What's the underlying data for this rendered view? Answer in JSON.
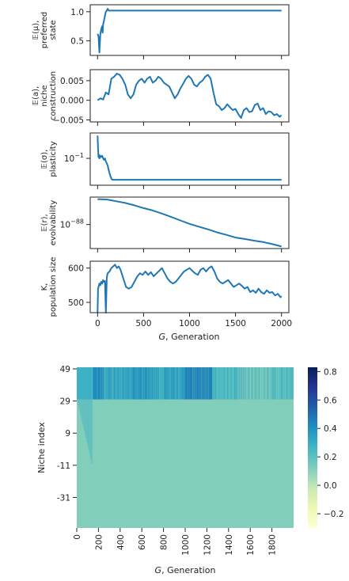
{
  "chart_data": [
    {
      "type": "line",
      "ylabel_lines": [
        "𝔼(μ),",
        "preferred",
        "state"
      ],
      "xlim": [
        -80,
        2080
      ],
      "ylim": [
        0.25,
        1.12
      ],
      "yticks": [
        {
          "v": 0.5,
          "label": "0.5"
        },
        {
          "v": 1.0,
          "label": "1.0"
        }
      ],
      "series": [
        {
          "x": [
            0,
            10,
            20,
            30,
            40,
            50,
            55,
            60,
            70,
            80,
            90,
            100,
            110,
            120,
            140,
            160,
            200,
            400,
            800,
            1200,
            1600,
            2000
          ],
          "values": [
            0.62,
            0.58,
            0.3,
            0.62,
            0.7,
            0.75,
            0.64,
            0.78,
            0.85,
            0.93,
            1.0,
            1.02,
            1.05,
            1.02,
            1.02,
            1.02,
            1.02,
            1.02,
            1.02,
            1.02,
            1.02,
            1.02
          ]
        }
      ]
    },
    {
      "type": "line",
      "ylabel_lines": [
        "𝔼(a),",
        "niche",
        "construction"
      ],
      "xlim": [
        -80,
        2080
      ],
      "ylim": [
        -0.0055,
        0.0078
      ],
      "yticks": [
        {
          "v": 0.005,
          "label": "0.005"
        },
        {
          "v": 0.0,
          "label": "0.000"
        },
        {
          "v": -0.005,
          "label": "−0.005"
        }
      ],
      "series": [
        {
          "x": [
            0,
            30,
            60,
            90,
            120,
            150,
            180,
            210,
            240,
            270,
            300,
            330,
            360,
            390,
            420,
            450,
            480,
            510,
            540,
            570,
            600,
            630,
            660,
            690,
            720,
            750,
            780,
            810,
            840,
            870,
            900,
            930,
            960,
            990,
            1020,
            1050,
            1080,
            1110,
            1140,
            1170,
            1200,
            1230,
            1260,
            1290,
            1320,
            1350,
            1380,
            1410,
            1440,
            1470,
            1500,
            1530,
            1560,
            1590,
            1620,
            1650,
            1680,
            1710,
            1740,
            1770,
            1800,
            1830,
            1860,
            1890,
            1920,
            1950,
            1980,
            2000
          ],
          "values": [
            0.0,
            0.0005,
            0.0002,
            0.002,
            0.0015,
            0.0055,
            0.006,
            0.0068,
            0.0065,
            0.0055,
            0.004,
            0.0015,
            0.0005,
            0.0015,
            0.004,
            0.005,
            0.0055,
            0.0045,
            0.0055,
            0.006,
            0.0045,
            0.005,
            0.006,
            0.0055,
            0.0045,
            0.004,
            0.0035,
            0.002,
            0.0005,
            0.0015,
            0.003,
            0.0042,
            0.0055,
            0.0062,
            0.0055,
            0.004,
            0.0035,
            0.0045,
            0.005,
            0.006,
            0.0065,
            0.0055,
            0.002,
            -0.001,
            -0.0015,
            -0.0025,
            -0.002,
            -0.001,
            -0.0018,
            -0.0025,
            -0.0022,
            -0.0035,
            -0.0045,
            -0.0025,
            -0.002,
            -0.003,
            -0.0028,
            -0.0012,
            -0.0008,
            -0.0025,
            -0.002,
            -0.0035,
            -0.0028,
            -0.003,
            -0.0038,
            -0.0035,
            -0.0042,
            -0.0038
          ]
        }
      ]
    },
    {
      "type": "line",
      "ylabel_lines": [
        "𝔼(σ),",
        "plasticity"
      ],
      "scale": "log",
      "xlim": [
        -80,
        2080
      ],
      "ylim": [
        0.015,
        0.6
      ],
      "yticks": [
        {
          "v": 0.1,
          "label": "10",
          "sup": "−1"
        }
      ],
      "series": [
        {
          "x": [
            0,
            5,
            10,
            15,
            20,
            30,
            40,
            50,
            60,
            70,
            80,
            90,
            100,
            110,
            120,
            130,
            140,
            150,
            160,
            180,
            200,
            400,
            800,
            1200,
            1600,
            2000
          ],
          "values": [
            0.5,
            0.2,
            0.11,
            0.13,
            0.1,
            0.12,
            0.11,
            0.12,
            0.1,
            0.09,
            0.1,
            0.08,
            0.07,
            0.06,
            0.045,
            0.035,
            0.028,
            0.024,
            0.022,
            0.022,
            0.022,
            0.022,
            0.022,
            0.022,
            0.022,
            0.022
          ]
        }
      ]
    },
    {
      "type": "line",
      "ylabel_lines": [
        "𝔼(r),",
        "evolvability"
      ],
      "scale": "log",
      "xlim": [
        -80,
        2080
      ],
      "ylim_exp": [
        -91.5,
        -84.0
      ],
      "yticks": [
        {
          "exp": -88,
          "label": "10",
          "sup": "−88"
        }
      ],
      "series": [
        {
          "x": [
            0,
            100,
            200,
            300,
            400,
            500,
            600,
            700,
            800,
            900,
            1000,
            1100,
            1200,
            1300,
            1400,
            1500,
            1600,
            1700,
            1800,
            1900,
            2000
          ],
          "log10_values": [
            -84.3,
            -84.35,
            -84.6,
            -84.85,
            -85.2,
            -85.6,
            -85.95,
            -86.4,
            -86.9,
            -87.4,
            -87.9,
            -88.3,
            -88.7,
            -89.15,
            -89.5,
            -89.9,
            -90.1,
            -90.35,
            -90.55,
            -90.85,
            -91.2
          ]
        }
      ]
    },
    {
      "type": "line",
      "ylabel_lines": [
        "K,",
        "population size"
      ],
      "xlabel_prefix": "G",
      "xlabel_suffix": ", Generation",
      "xlim": [
        -80,
        2080
      ],
      "xticks": [
        0,
        500,
        1000,
        1500,
        2000
      ],
      "ylim": [
        470,
        620
      ],
      "yticks": [
        {
          "v": 500,
          "label": "500"
        },
        {
          "v": 600,
          "label": "600"
        }
      ],
      "series": [
        {
          "x": [
            0,
            5,
            10,
            20,
            30,
            40,
            50,
            60,
            70,
            80,
            90,
            100,
            105,
            110,
            130,
            150,
            170,
            190,
            210,
            230,
            250,
            280,
            310,
            340,
            370,
            400,
            430,
            460,
            490,
            520,
            550,
            580,
            610,
            640,
            670,
            700,
            730,
            760,
            790,
            820,
            850,
            880,
            910,
            940,
            970,
            1000,
            1030,
            1060,
            1090,
            1120,
            1150,
            1180,
            1210,
            1240,
            1270,
            1300,
            1330,
            1360,
            1390,
            1420,
            1450,
            1480,
            1510,
            1540,
            1570,
            1600,
            1630,
            1660,
            1690,
            1720,
            1750,
            1780,
            1810,
            1840,
            1870,
            1900,
            1930,
            1960,
            1990,
            2000
          ],
          "values": [
            470,
            540,
            545,
            555,
            550,
            560,
            555,
            565,
            560,
            562,
            470,
            570,
            580,
            585,
            590,
            600,
            605,
            610,
            600,
            605,
            595,
            570,
            545,
            540,
            545,
            560,
            575,
            585,
            580,
            590,
            580,
            588,
            576,
            584,
            592,
            600,
            585,
            570,
            560,
            555,
            560,
            570,
            580,
            590,
            595,
            600,
            592,
            585,
            580,
            595,
            600,
            590,
            600,
            605,
            590,
            570,
            560,
            555,
            560,
            565,
            555,
            545,
            550,
            555,
            548,
            540,
            545,
            530,
            535,
            528,
            540,
            530,
            525,
            535,
            528,
            530,
            520,
            525,
            515,
            518
          ]
        }
      ]
    },
    {
      "type": "heatmap",
      "xlabel_prefix": "G",
      "xlabel_suffix": ", Generation",
      "ylabel": "Niche index",
      "yrange": [
        50,
        -50
      ],
      "xticks": [
        0,
        200,
        400,
        600,
        800,
        1000,
        1200,
        1400,
        1600,
        1800
      ],
      "yticks": [
        49,
        29,
        9,
        -11,
        -31
      ],
      "xlim": [
        0,
        2000
      ],
      "colorbar": {
        "min": -0.3,
        "max": 0.83,
        "ticks": [
          {
            "v": 0.8,
            "label": "0.8"
          },
          {
            "v": 0.6,
            "label": "0.6"
          },
          {
            "v": 0.4,
            "label": "0.4"
          },
          {
            "v": 0.2,
            "label": "0.2"
          },
          {
            "v": 0.0,
            "label": "0.0"
          },
          {
            "v": -0.2,
            "label": "−0.2"
          }
        ]
      },
      "background_value": 0.12,
      "upper_band_range": [
        30,
        49
      ],
      "upper_band_segments": [
        {
          "x0": 0,
          "x1": 150,
          "value": 0.28
        },
        {
          "x0": 150,
          "x1": 250,
          "value": 0.42
        },
        {
          "x0": 250,
          "x1": 500,
          "value": 0.33
        },
        {
          "x0": 500,
          "x1": 700,
          "value": 0.38
        },
        {
          "x0": 700,
          "x1": 800,
          "value": 0.3
        },
        {
          "x0": 800,
          "x1": 1000,
          "value": 0.34
        },
        {
          "x0": 1000,
          "x1": 1250,
          "value": 0.44
        },
        {
          "x0": 1250,
          "x1": 1500,
          "value": 0.24
        },
        {
          "x0": 1500,
          "x1": 1800,
          "value": 0.17
        },
        {
          "x0": 1800,
          "x1": 2000,
          "value": 0.22
        }
      ]
    }
  ]
}
